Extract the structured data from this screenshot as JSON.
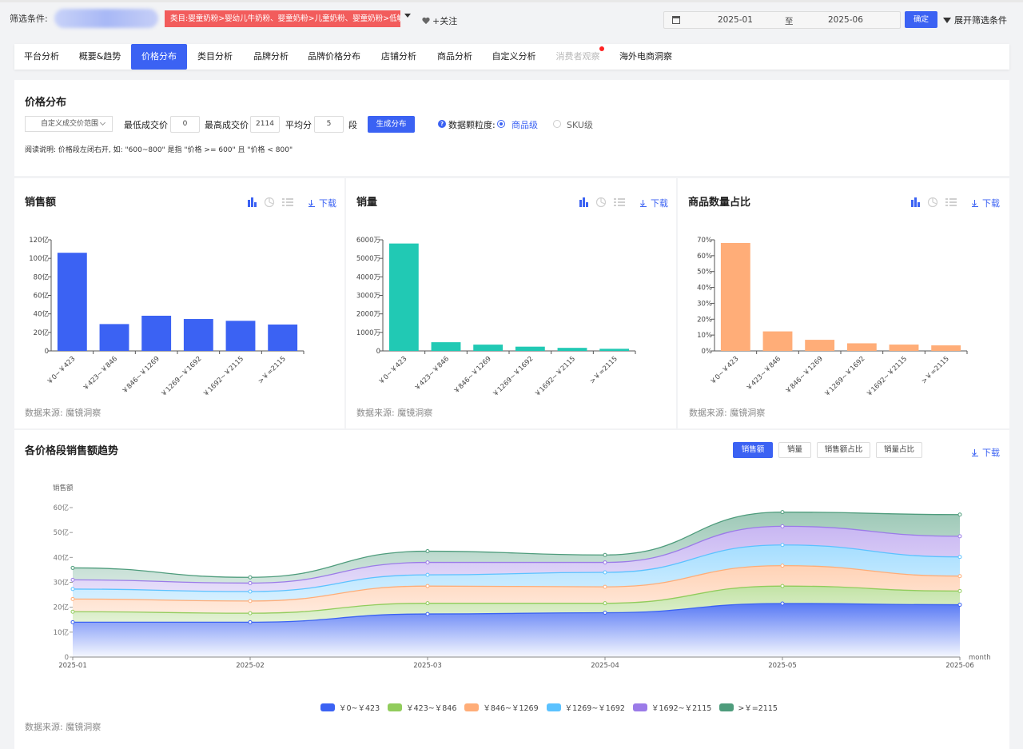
{
  "filter": {
    "label": "筛选条件:",
    "category": "类目:婴童奶粉>婴幼儿牛奶粉、婴童奶粉>儿童奶粉、婴童奶粉>低敏奶粉",
    "follow": "+关注",
    "date_from": "2025-01",
    "date_sep": "至",
    "date_to": "2025-06",
    "confirm": "确定",
    "expand": "展开筛选条件"
  },
  "tabs": [
    {
      "label": "平台分析"
    },
    {
      "label": "概要&趋势"
    },
    {
      "label": "价格分布",
      "active": true
    },
    {
      "label": "类目分析"
    },
    {
      "label": "品牌分析"
    },
    {
      "label": "品牌价格分布"
    },
    {
      "label": "店铺分析"
    },
    {
      "label": "商品分析"
    },
    {
      "label": "自定义分析"
    },
    {
      "label": "消费者观察",
      "disabled": true
    },
    {
      "label": "海外电商洞察"
    }
  ],
  "price_dist": {
    "title": "价格分布",
    "range_select": "自定义成交价范围",
    "min_label": "最低成交价",
    "min_value": "0",
    "max_label": "最高成交价",
    "max_value": "2114",
    "avg_label": "平均分",
    "avg_value": "5",
    "seg_label": "段",
    "generate": "生成分布",
    "granularity_label": "数据颗粒度:",
    "opt_product": "商品级",
    "opt_sku": "SKU级",
    "note": "阅读说明: 价格段左闭右开, 如: \"600~800\" 是指 \"价格 >= 600\" 且 \"价格 < 800\""
  },
  "common": {
    "download": "下载",
    "source": "数据来源: 魔镜洞察"
  },
  "colors": {
    "accent": "#3b62f3",
    "sales": "#3b62f3",
    "volume": "#21c9b4",
    "share": "#ffad78"
  },
  "chart_data": [
    {
      "type": "bar",
      "title": "销售额",
      "categories": [
        "￥0~￥423",
        "￥423~￥846",
        "￥846~￥1269",
        "￥1269~￥1692",
        "￥1692~￥2115",
        ">￥=2115"
      ],
      "values": [
        106,
        29,
        38,
        34.5,
        32.5,
        28.5
      ],
      "ylim": [
        0,
        120
      ],
      "yticks": [
        "0",
        "20亿",
        "40亿",
        "60亿",
        "80亿",
        "100亿",
        "120亿"
      ]
    },
    {
      "type": "bar",
      "title": "销量",
      "categories": [
        "￥0~￥423",
        "￥423~￥846",
        "￥846~￥1269",
        "￥1269~￥1692",
        "￥1692~￥2115",
        ">￥=2115"
      ],
      "values": [
        5800,
        470,
        340,
        230,
        165,
        115
      ],
      "ylim": [
        0,
        6000
      ],
      "yticks": [
        "0",
        "1000万",
        "2000万",
        "3000万",
        "4000万",
        "5000万",
        "6000万"
      ]
    },
    {
      "type": "bar",
      "title": "商品数量占比",
      "categories": [
        "￥0~￥423",
        "￥423~￥846",
        "￥846~￥1269",
        "￥1269~￥1692",
        "￥1692~￥2115",
        ">￥=2115"
      ],
      "values": [
        68,
        12.3,
        7,
        4.8,
        4,
        3.5
      ],
      "ylim": [
        0,
        70
      ],
      "yticks": [
        "0%",
        "10%",
        "20%",
        "30%",
        "40%",
        "50%",
        "60%",
        "70%"
      ]
    },
    {
      "type": "area",
      "title": "各价格段销售额趋势",
      "ylabel": "销售额",
      "xlabel": "month",
      "x": [
        "2025-01",
        "2025-02",
        "2025-03",
        "2025-04",
        "2025-05",
        "2025-06"
      ],
      "ylim": [
        0,
        60
      ],
      "yticks": [
        "0",
        "10亿",
        "20亿",
        "30亿",
        "40亿",
        "50亿",
        "60亿"
      ],
      "stacked_totals": [
        {
          "name": "￥0~￥423",
          "color": "#3b62f3",
          "values": [
            14,
            14,
            17.3,
            17.8,
            21.5,
            21
          ]
        },
        {
          "name": "￥423~￥846",
          "color": "#91cc5c",
          "values": [
            18.2,
            17.6,
            21.6,
            21.6,
            28.5,
            26.5
          ]
        },
        {
          "name": "￥846~￥1269",
          "color": "#ffad78",
          "values": [
            23.3,
            22.5,
            28.5,
            28.2,
            36.7,
            32.5
          ]
        },
        {
          "name": "￥1269~￥1692",
          "color": "#5bc2ff",
          "values": [
            27.3,
            26.3,
            33,
            34,
            45,
            40.2
          ]
        },
        {
          "name": "￥1692~￥2115",
          "color": "#9b7be8",
          "values": [
            31,
            29.7,
            38,
            38,
            52.5,
            48.5
          ]
        },
        {
          "name": ">￥=2115",
          "color": "#4e9c7c",
          "values": [
            35.8,
            32,
            42.5,
            41,
            58.2,
            57.2
          ]
        }
      ]
    }
  ],
  "trend": {
    "btn_sales": "销售额",
    "btn_volume": "销量",
    "btn_sales_share": "销售额占比",
    "btn_volume_share": "销量占比"
  }
}
